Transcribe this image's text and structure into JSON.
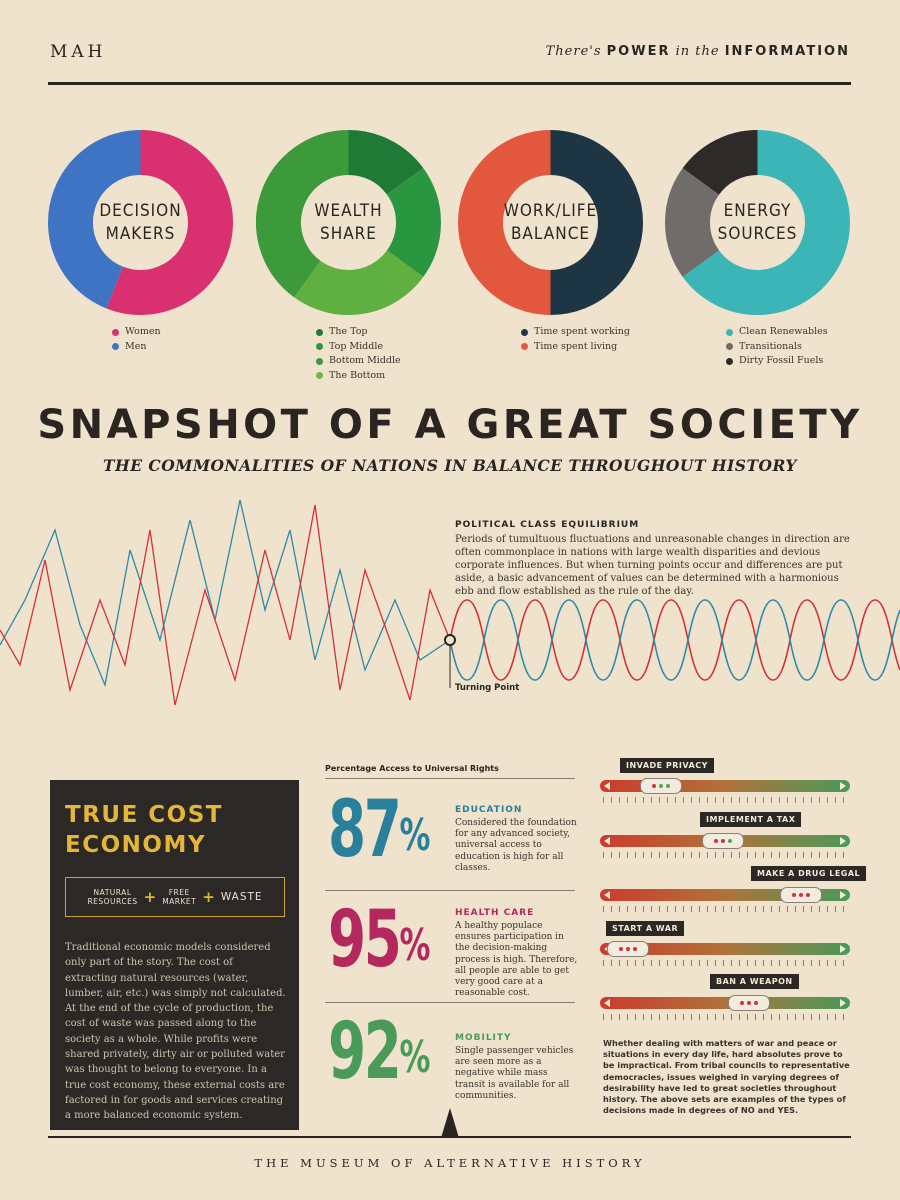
{
  "header": {
    "logo": "MAH",
    "tagline_a": "There's",
    "tagline_b": "POWER",
    "tagline_c": "in the",
    "tagline_d": "INFORMATION"
  },
  "donuts": [
    {
      "label_1": "DECISION",
      "label_2": "MAKERS",
      "segments": [
        {
          "name": "Women",
          "value": 56,
          "color": "#d9306f"
        },
        {
          "name": "Men",
          "value": 44,
          "color": "#3f74c4"
        }
      ]
    },
    {
      "label_1": "WEALTH",
      "label_2": "SHARE",
      "segments": [
        {
          "name": "The Top",
          "value": 15,
          "color": "#1f7a36"
        },
        {
          "name": "Top Middle",
          "value": 20,
          "color": "#2a9740"
        },
        {
          "name": "Bottom Middle",
          "value": 25,
          "color": "#5fb040"
        },
        {
          "name": "The Bottom",
          "value": 40,
          "color": "#3d9a3a"
        }
      ]
    },
    {
      "label_1": "WORK/LIFE",
      "label_2": "BALANCE",
      "segments": [
        {
          "name": "Time spent working",
          "value": 50,
          "color": "#1e3644"
        },
        {
          "name": "Time spent living",
          "value": 50,
          "color": "#e2573d"
        }
      ]
    },
    {
      "label_1": "ENERGY",
      "label_2": "SOURCES",
      "segments": [
        {
          "name": "Clean Renewables",
          "value": 65,
          "color": "#3bb5b5"
        },
        {
          "name": "Transitionals",
          "value": 20,
          "color": "#6f6c6a"
        },
        {
          "name": "Dirty Fossil Fuels",
          "value": 15,
          "color": "#2d2a29"
        }
      ]
    }
  ],
  "legends": [
    [
      {
        "label": "Women",
        "color": "#d9306f"
      },
      {
        "label": "Men",
        "color": "#3f74c4"
      }
    ],
    [
      {
        "label": "The Top",
        "color": "#1f7a36"
      },
      {
        "label": "Top Middle",
        "color": "#2a9740"
      },
      {
        "label": "Bottom Middle",
        "color": "#3d9a3a"
      },
      {
        "label": "The Bottom",
        "color": "#6cb844"
      }
    ],
    [
      {
        "label": "Time spent working",
        "color": "#1e3644"
      },
      {
        "label": "Time spent living",
        "color": "#e2573d"
      }
    ],
    [
      {
        "label": "Clean Renewables",
        "color": "#3bb5b5"
      },
      {
        "label": "Transitionals",
        "color": "#6f6c6a"
      },
      {
        "label": "Dirty Fossil Fuels",
        "color": "#2d2a29"
      }
    ]
  ],
  "title": "SNAPSHOT OF A GREAT SOCIETY",
  "subtitle": "THE COMMONALITIES OF NATIONS IN BALANCE THROUGHOUT HISTORY",
  "political": {
    "title": "POLITICAL CLASS EQUILIBRIUM",
    "body": "Periods of tumultuous fluctuations and unreasonable changes in direction are often commonplace in nations with large wealth disparities and devious corporate influences. But when turning points occur and differences are put aside, a basic advancement of values can be determined with a harmonious ebb and flow established as the rule of the day.",
    "turning_point": "Turning Point"
  },
  "true_cost": {
    "title_1": "TRUE COST",
    "title_2": "ECONOMY",
    "eq_1a": "NATURAL",
    "eq_1b": "RESOURCES",
    "eq_plus": "+",
    "eq_2a": "FREE",
    "eq_2b": "MARKET",
    "eq_3": "WASTE",
    "body": "Traditional economic models considered only part of the story. The cost of extracting natural resources (water, lumber, air, etc.) was simply not calculated. At the end of the cycle of production, the cost of waste was passed along to the society as a whole. While profits were shared privately, dirty air or polluted water was thought to belong to everyone. In a true cost economy, these external costs are factored in for goods and services creating a more balanced economic system."
  },
  "rights": {
    "title": "Percentage Access to Universal Rights",
    "items": [
      {
        "pct": "87",
        "sign": "%",
        "color": "#2a7f9a",
        "title": "EDUCATION",
        "body": "Considered the foundation for any advanced society, universal access to education is high for all classes."
      },
      {
        "pct": "95",
        "sign": "%",
        "color": "#b3285e",
        "title": "HEALTH CARE",
        "body": "A healthy populace ensures participation in the decision-making process is high. Therefore, all people are able to get very good care at a reasonable cost."
      },
      {
        "pct": "92",
        "sign": "%",
        "color": "#4a9a5a",
        "title": "MOBILITY",
        "body": "Single passenger vehicles are seen more as a negative while mass transit is available for all communities."
      }
    ]
  },
  "sliders": {
    "items": [
      {
        "label": "INVADE PRIVACY",
        "value": 0.27
      },
      {
        "label": "IMPLEMENT A TAX",
        "value": 0.49
      },
      {
        "label": "MAKE A DRUG LEGAL",
        "value": 0.8
      },
      {
        "label": "START A WAR",
        "value": 0.12
      },
      {
        "label": "BAN A WEAPON",
        "value": 0.6
      }
    ],
    "note": "Whether dealing with matters of war and peace or situations in every day life, hard absolutes prove to be impractical. From tribal councils to representative democracies, issues weighed in varying degrees of desirability have led to great societies throughout history. The above sets are examples of the types of decisions made in degrees of NO and YES."
  },
  "footer": "THE MUSEUM OF ALTERNATIVE HISTORY"
}
